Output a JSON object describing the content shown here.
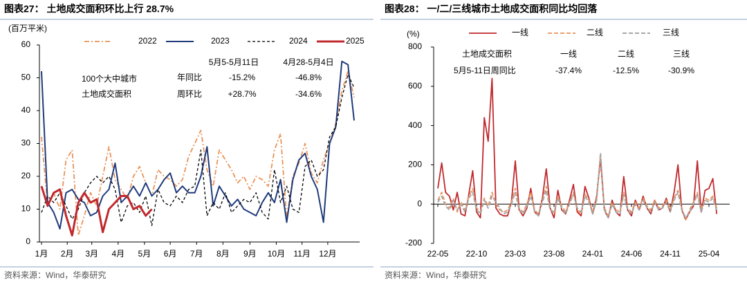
{
  "chart_data": [
    {
      "type": "line",
      "title": "图表27：  土地成交面积环比上行 28.7%",
      "y_label": "(百万平米)",
      "source": "资料来源：Wind，华泰研究",
      "annotation": {
        "lines": [
          "100个大中城市",
          "土地成交面积"
        ],
        "columns": [
          "5月5-5月11日",
          "4月28-5月4日"
        ],
        "rows": [
          {
            "label": "年同比",
            "values": [
              "-15.2%",
              "-46.8%"
            ]
          },
          {
            "label": "周环比",
            "values": [
              "+28.7%",
              "-34.6%"
            ]
          }
        ]
      },
      "x": [
        1,
        2,
        3,
        4,
        5,
        6,
        7,
        8,
        9,
        10,
        11,
        12,
        13,
        14,
        15,
        16,
        17,
        18,
        19,
        20,
        21,
        22,
        23,
        24,
        25,
        26,
        27,
        28,
        29,
        30,
        31,
        32,
        33,
        34,
        35,
        36,
        37,
        38,
        39,
        40,
        41,
        42,
        43,
        44,
        45,
        46,
        47,
        48,
        49,
        50,
        51,
        52
      ],
      "xlim": [
        1,
        52
      ],
      "xticks": [
        {
          "value": 1,
          "label": "1月"
        },
        {
          "value": 5.2,
          "label": "2月"
        },
        {
          "value": 9.2,
          "label": "3月"
        },
        {
          "value": 13.5,
          "label": "4月"
        },
        {
          "value": 17.8,
          "label": "5月"
        },
        {
          "value": 22,
          "label": "6月"
        },
        {
          "value": 26.3,
          "label": "7月"
        },
        {
          "value": 30.6,
          "label": "8月"
        },
        {
          "value": 35,
          "label": "9月"
        },
        {
          "value": 39.3,
          "label": "10月"
        },
        {
          "value": 43.5,
          "label": "11月"
        },
        {
          "value": 47.7,
          "label": "12月"
        }
      ],
      "ylim": [
        0,
        60
      ],
      "yticks": [
        0,
        10,
        20,
        30,
        40,
        50,
        60
      ],
      "series": [
        {
          "name": "2022",
          "color": "#e8935a",
          "dash": "7 3 2 3",
          "width": 1.8,
          "values": [
            32,
            11,
            15,
            10,
            25,
            28,
            2,
            8,
            15,
            11,
            20,
            29,
            19,
            16,
            13,
            20,
            23,
            18,
            14,
            22,
            20,
            19,
            17,
            19,
            26,
            30,
            34,
            22,
            17,
            28,
            25,
            22,
            18,
            20,
            16,
            20,
            19,
            17,
            28,
            33,
            7,
            20,
            24,
            30,
            21,
            18,
            25,
            30,
            36,
            46,
            52,
            44
          ]
        },
        {
          "name": "2023",
          "color": "#1f3a7a",
          "dash": "",
          "width": 2,
          "values": [
            52,
            12,
            9,
            4,
            15,
            16,
            13,
            12,
            8,
            9,
            14,
            16,
            24,
            12,
            14,
            17,
            14,
            18,
            14,
            16,
            19,
            21,
            15,
            17,
            15,
            15,
            20,
            29,
            11,
            17,
            14,
            11,
            13,
            10,
            9,
            8,
            12,
            15,
            12,
            19,
            6,
            19,
            25,
            27,
            20,
            16,
            6,
            30,
            35,
            55,
            54,
            37
          ]
        },
        {
          "name": "2024",
          "color": "#000000",
          "dash": "4 3",
          "width": 1.3,
          "values": [
            9,
            14,
            12,
            15,
            11,
            7,
            10,
            15,
            18,
            20,
            18,
            20,
            16,
            6,
            11,
            12,
            9,
            14,
            5,
            16,
            12,
            11,
            14,
            12,
            16,
            17,
            28,
            8,
            12,
            10,
            15,
            9,
            11,
            13,
            12,
            15,
            9,
            7,
            22,
            12,
            17,
            10,
            9,
            23,
            25,
            20,
            22,
            32,
            35,
            44,
            51,
            47
          ]
        },
        {
          "name": "2025",
          "color": "#c0282d",
          "dash": "",
          "width": 3,
          "values": [
            17,
            11,
            15,
            16,
            8,
            2,
            12,
            15,
            12,
            13,
            3,
            10,
            12,
            14,
            14,
            10,
            11,
            8,
            10,
            null,
            null,
            null,
            null,
            null,
            null,
            null,
            null,
            null,
            null,
            null,
            null,
            null,
            null,
            null,
            null,
            null,
            null,
            null,
            null,
            null,
            null,
            null,
            null,
            null,
            null,
            null,
            null,
            null,
            null,
            null,
            null,
            null
          ]
        }
      ]
    },
    {
      "type": "line",
      "title": "图表28：  一/二/三线城市土地成交面积同比均回落",
      "y_label": "(%)",
      "source": "资料来源：Wind，华泰研究",
      "annotation": {
        "header": "土地成交面积",
        "columns": [
          "一线",
          "二线",
          "三线"
        ],
        "row_label": "5月5-11日周同比",
        "values": [
          "-37.4%",
          "-12.5%",
          "-30.9%"
        ]
      },
      "x": [
        0,
        0.5,
        1,
        1.5,
        2,
        2.5,
        3,
        3.5,
        4,
        4.5,
        5,
        5.5,
        6,
        6.5,
        7,
        7.5,
        8,
        8.5,
        9,
        9.5,
        10,
        10.5,
        11,
        11.5,
        12,
        12.5,
        13,
        13.5,
        14,
        14.5,
        15,
        15.5,
        16,
        16.5,
        17,
        17.5,
        18,
        18.5,
        19,
        19.5,
        20,
        20.5,
        21,
        21.5,
        22,
        22.5,
        23,
        23.5,
        24,
        24.5,
        25,
        25.5,
        26,
        26.5,
        27,
        27.5,
        28,
        28.5,
        29,
        29.5,
        30,
        30.5,
        31,
        31.5,
        32,
        32.5,
        33,
        33.5,
        34,
        34.5,
        35,
        35.5,
        36
      ],
      "xlim": [
        -0.5,
        37.5
      ],
      "xticks": [
        {
          "value": 0,
          "label": "22-05"
        },
        {
          "value": 5,
          "label": "22-10"
        },
        {
          "value": 10,
          "label": "23-03"
        },
        {
          "value": 15,
          "label": "23-08"
        },
        {
          "value": 20,
          "label": "24-01"
        },
        {
          "value": 25,
          "label": "24-06"
        },
        {
          "value": 30,
          "label": "24-11"
        },
        {
          "value": 35,
          "label": "25-04"
        }
      ],
      "ylim": [
        -200,
        800
      ],
      "yticks": [
        -200,
        0,
        200,
        400,
        600,
        800
      ],
      "series": [
        {
          "name": "一线",
          "color": "#c0282d",
          "dash": "",
          "width": 1.8,
          "values": [
            80,
            210,
            60,
            40,
            -30,
            60,
            -50,
            -60,
            50,
            170,
            -40,
            -70,
            440,
            320,
            640,
            -20,
            -50,
            -60,
            -60,
            10,
            220,
            -30,
            -60,
            -20,
            80,
            -40,
            -60,
            30,
            180,
            -20,
            -70,
            70,
            -30,
            -50,
            20,
            100,
            -40,
            -60,
            90,
            30,
            -50,
            40,
            230,
            -30,
            -70,
            20,
            -40,
            -60,
            140,
            -30,
            -60,
            20,
            -30,
            40,
            -20,
            -50,
            20,
            -30,
            -20,
            30,
            -40,
            60,
            200,
            -30,
            -80,
            -40,
            -10,
            220,
            -40,
            70,
            80,
            130,
            -50
          ]
        },
        {
          "name": "二线",
          "color": "#e8935a",
          "dash": "6 3",
          "width": 1.8,
          "values": [
            20,
            60,
            0,
            -20,
            30,
            -40,
            10,
            -30,
            40,
            80,
            -20,
            -40,
            30,
            -10,
            60,
            0,
            -30,
            -40,
            -30,
            10,
            80,
            -20,
            -40,
            0,
            60,
            -30,
            -50,
            20,
            90,
            -20,
            -50,
            40,
            -10,
            -40,
            10,
            60,
            -30,
            -50,
            50,
            20,
            -40,
            30,
            250,
            -20,
            -60,
            10,
            -30,
            -40,
            60,
            -20,
            -40,
            10,
            -20,
            30,
            -10,
            -30,
            20,
            -20,
            -10,
            20,
            -30,
            30,
            70,
            -20,
            -80,
            -30,
            10,
            60,
            -30,
            30,
            20,
            40,
            -20
          ]
        },
        {
          "name": "三线",
          "color": "#a6a6a6",
          "dash": "6 3",
          "width": 2,
          "values": [
            10,
            40,
            -10,
            -30,
            20,
            -30,
            0,
            -40,
            30,
            60,
            -30,
            -50,
            20,
            -20,
            40,
            10,
            -20,
            -50,
            -40,
            0,
            60,
            -30,
            -50,
            -10,
            40,
            -40,
            -60,
            10,
            70,
            -30,
            -40,
            30,
            -20,
            -50,
            0,
            50,
            -20,
            -40,
            40,
            10,
            -50,
            20,
            260,
            -30,
            -70,
            0,
            -40,
            -50,
            50,
            -30,
            -50,
            0,
            -30,
            20,
            -20,
            -40,
            10,
            -30,
            -20,
            10,
            -40,
            20,
            60,
            -30,
            -70,
            -40,
            0,
            50,
            -40,
            20,
            10,
            30,
            -30
          ]
        }
      ]
    }
  ]
}
